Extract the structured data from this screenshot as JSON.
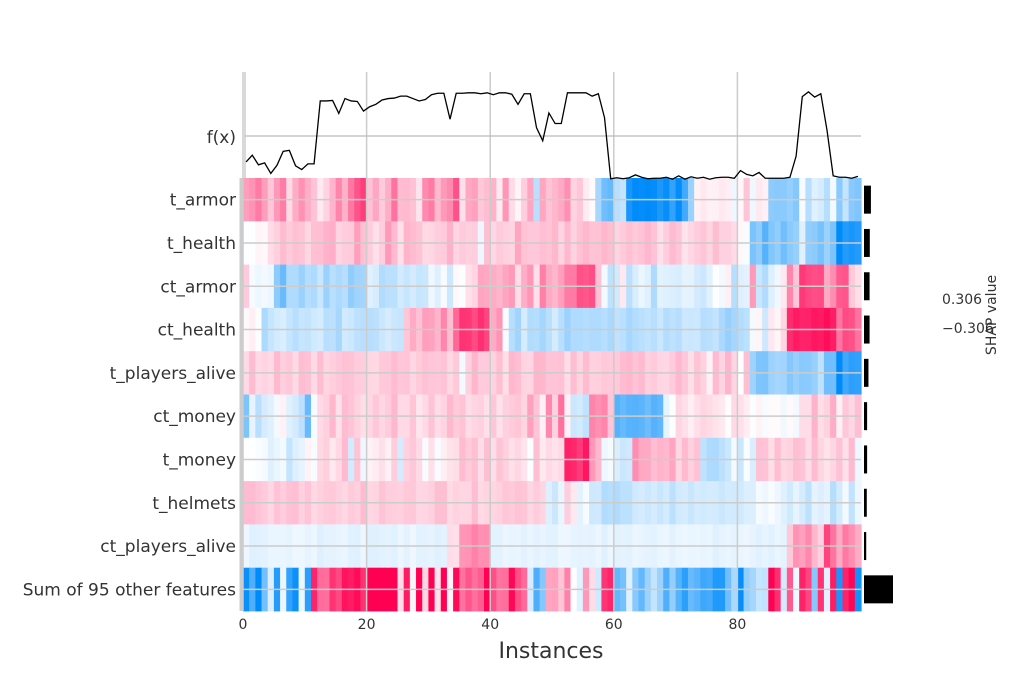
{
  "chart_data": {
    "type": "heatmap",
    "title": "",
    "xlabel": "Instances",
    "fx_label": "f(x)",
    "colorbar_label": "SHAP value",
    "colorbar_max_label": "0.306",
    "colorbar_min_label": "−0.306",
    "vmin": -0.306,
    "vmax": 0.306,
    "xlim": [
      0,
      100
    ],
    "x_ticks": [
      0,
      20,
      40,
      60,
      80
    ],
    "n_instances": 100,
    "colors": {
      "negative": "#008bfb",
      "positive": "#ff0052",
      "neutral": "#ffffff",
      "line": "#000000",
      "grid": "#cccccc"
    },
    "features": [
      "t_armor",
      "t_health",
      "ct_armor",
      "ct_health",
      "t_players_alive",
      "ct_money",
      "t_money",
      "t_helmets",
      "ct_players_alive",
      "Sum of 95 other features"
    ],
    "feature_importance": [
      0.62,
      0.52,
      0.5,
      0.5,
      0.4,
      0.28,
      0.28,
      0.25,
      0.2,
      2.6
    ],
    "fx_values": [
      -0.54,
      -0.4,
      -0.6,
      -0.56,
      -0.78,
      -0.61,
      -0.32,
      -0.3,
      -0.62,
      -0.7,
      -0.58,
      -0.58,
      0.73,
      0.73,
      0.74,
      0.47,
      0.78,
      0.73,
      0.72,
      0.52,
      0.61,
      0.66,
      0.75,
      0.78,
      0.79,
      0.83,
      0.83,
      0.78,
      0.73,
      0.76,
      0.86,
      0.89,
      0.89,
      0.35,
      0.89,
      0.89,
      0.9,
      0.9,
      0.88,
      0.9,
      0.86,
      0.9,
      0.9,
      0.87,
      0.66,
      0.88,
      0.88,
      0.17,
      -0.1,
      0.48,
      0.26,
      0.26,
      0.9,
      0.9,
      0.9,
      0.9,
      0.83,
      0.88,
      0.38,
      -0.89,
      -0.87,
      -0.89,
      -0.87,
      -0.81,
      -0.86,
      -0.89,
      -0.88,
      -0.88,
      -0.86,
      -0.9,
      -0.83,
      -0.9,
      -0.85,
      -0.88,
      -0.86,
      -0.9,
      -0.87,
      -0.86,
      -0.86,
      -0.88,
      -0.72,
      -0.8,
      -0.83,
      -0.76,
      -0.88,
      -0.88,
      -0.88,
      -0.88,
      -0.86,
      -0.42,
      0.82,
      0.92,
      0.81,
      0.88,
      0.12,
      -0.83,
      -0.86,
      -0.86,
      -0.88,
      -0.84
    ],
    "shap_values": [
      [
        0.118,
        0.13,
        0.159,
        0.118,
        0.068,
        0.123,
        0.157,
        0.043,
        0.1,
        0.132,
        0.097,
        0.073,
        0.025,
        0.053,
        0.091,
        0.147,
        0.094,
        0.162,
        0.205,
        0.233,
        0.075,
        0.107,
        0.062,
        0.097,
        0.171,
        0.082,
        0.083,
        0.075,
        0.032,
        0.141,
        0.16,
        0.083,
        0.123,
        0.14,
        0.209,
        0.039,
        0.104,
        0.114,
        0.066,
        0.079,
        0.093,
        0.025,
        0.126,
        0.043,
        0.013,
        0.06,
        0.108,
        -0.083,
        0.107,
        0.073,
        0.087,
        0.103,
        0.134,
        0.052,
        0.068,
        0.024,
        0.006,
        -0.105,
        -0.172,
        -0.185,
        -0.085,
        -0.072,
        -0.277,
        -0.306,
        -0.3,
        -0.319,
        -0.301,
        -0.273,
        -0.298,
        -0.245,
        -0.303,
        -0.227,
        -0.12,
        0.016,
        0.028,
        0.017,
        0.018,
        0.028,
        0.021,
        -0.021,
        0.009,
        0.07,
        -0.019,
        0.026,
        0.018,
        -0.136,
        -0.142,
        -0.139,
        -0.127,
        -0.145,
        -0.01,
        -0.086,
        -0.038,
        -0.05,
        -0.088,
        -0.014,
        -0.139,
        -0.072,
        -0.142,
        -0.152
      ],
      [
        -0.003,
        -0.002,
        0.012,
        0.009,
        0.042,
        0.056,
        0.081,
        0.062,
        0.076,
        0.071,
        0.048,
        0.076,
        0.078,
        0.092,
        0.098,
        0.05,
        0.061,
        0.064,
        0.117,
        0.076,
        0.06,
        0.037,
        0.059,
        0.122,
        0.084,
        0.037,
        0.09,
        0.082,
        0.072,
        0.046,
        0.048,
        0.06,
        0.064,
        0.094,
        0.05,
        0.064,
        0.056,
        0.059,
        -0.021,
        0.077,
        0.048,
        0.064,
        0.057,
        0.051,
        0.108,
        0.072,
        0.067,
        0.067,
        0.078,
        0.072,
        0.087,
        0.052,
        0.085,
        0.054,
        0.075,
        0.086,
        0.072,
        0.074,
        0.086,
        0.077,
        0.053,
        0.062,
        0.076,
        0.064,
        0.073,
        0.087,
        0.073,
        0.039,
        0.06,
        0.084,
        0.069,
        0.034,
        0.049,
        0.059,
        0.07,
        0.051,
        0.079,
        0.055,
        0.056,
        0.043,
        0.009,
        -0.008,
        -0.158,
        -0.134,
        -0.202,
        -0.151,
        -0.132,
        -0.171,
        -0.14,
        -0.124,
        -0.039,
        -0.131,
        -0.137,
        -0.163,
        -0.121,
        -0.157,
        -0.314,
        -0.264,
        -0.278,
        -0.263
      ],
      [
        0.064,
        -0.011,
        -0.022,
        -0.015,
        -0.021,
        -0.137,
        -0.179,
        -0.095,
        -0.096,
        -0.121,
        -0.09,
        -0.098,
        -0.066,
        -0.121,
        -0.085,
        -0.099,
        -0.087,
        -0.133,
        -0.114,
        -0.11,
        -0.038,
        -0.048,
        -0.092,
        -0.082,
        -0.082,
        -0.054,
        -0.068,
        -0.052,
        -0.069,
        -0.063,
        -0.018,
        -0.04,
        -0.01,
        -0.061,
        0.008,
        -0.004,
        0.038,
        0.05,
        0.109,
        0.105,
        0.099,
        0.089,
        0.108,
        0.122,
        0.04,
        0.098,
        0.126,
        0.038,
        0.154,
        0.102,
        0.089,
        0.117,
        0.158,
        0.16,
        0.21,
        0.203,
        0.213,
        0.075,
        -0.014,
        -0.078,
        -0.056,
        0.028,
        -0.082,
        -0.047,
        -0.024,
        -0.038,
        -0.097,
        -0.035,
        -0.039,
        -0.042,
        -0.047,
        -0.032,
        -0.031,
        -0.052,
        -0.06,
        -0.036,
        -0.003,
        -0.015,
        0.019,
        -0.088,
        -0.04,
        -0.033,
        0.123,
        -0.066,
        -0.092,
        -0.04,
        -0.019,
        0.028,
        0.146,
        0.071,
        0.239,
        0.22,
        0.212,
        0.216,
        0.103,
        0.137,
        0.198,
        0.204,
        0.065,
        0.04
      ],
      [
        0.009,
        0.021,
        -0.004,
        -0.1,
        -0.069,
        -0.053,
        -0.046,
        -0.068,
        -0.084,
        -0.069,
        -0.071,
        -0.058,
        -0.05,
        -0.084,
        -0.081,
        -0.105,
        -0.055,
        -0.061,
        -0.079,
        -0.085,
        -0.086,
        -0.082,
        -0.063,
        -0.049,
        -0.063,
        -0.069,
        0.069,
        0.101,
        0.075,
        0.117,
        0.112,
        0.089,
        0.147,
        0.077,
        0.182,
        0.245,
        0.24,
        0.216,
        0.25,
        0.225,
        0.101,
        0.128,
        -0.007,
        -0.088,
        -0.112,
        -0.05,
        -0.092,
        -0.09,
        -0.109,
        -0.082,
        -0.052,
        -0.085,
        -0.119,
        -0.094,
        -0.096,
        -0.09,
        -0.095,
        -0.096,
        -0.086,
        -0.101,
        -0.076,
        -0.082,
        -0.105,
        -0.091,
        -0.083,
        -0.073,
        -0.085,
        -0.064,
        -0.089,
        -0.078,
        -0.087,
        -0.06,
        -0.063,
        -0.061,
        -0.086,
        -0.083,
        -0.071,
        -0.101,
        -0.124,
        -0.107,
        -0.091,
        -0.08,
        -0.012,
        0.012,
        -0.059,
        0.029,
        0.013,
        0.048,
        0.255,
        0.274,
        0.264,
        0.266,
        0.28,
        0.274,
        0.29,
        0.271,
        0.167,
        0.216,
        0.209,
        0.17
      ],
      [
        0.044,
        0.081,
        0.045,
        0.053,
        0.045,
        0.083,
        0.059,
        0.067,
        0.044,
        0.079,
        0.074,
        0.046,
        0.079,
        0.05,
        0.058,
        0.066,
        0.074,
        0.072,
        0.061,
        0.059,
        0.048,
        0.047,
        0.065,
        0.067,
        0.082,
        0.068,
        0.071,
        0.048,
        0.063,
        0.075,
        0.068,
        0.066,
        0.073,
        0.047,
        0.065,
        -0.016,
        0.055,
        0.088,
        0.064,
        0.064,
        0.054,
        0.078,
        0.04,
        0.086,
        0.078,
        0.052,
        0.05,
        0.088,
        0.087,
        0.071,
        0.073,
        0.074,
        0.041,
        0.079,
        0.052,
        0.081,
        0.056,
        0.058,
        0.066,
        0.062,
        0.065,
        0.082,
        0.086,
        0.073,
        0.084,
        0.057,
        0.064,
        0.05,
        0.048,
        0.062,
        0.085,
        0.067,
        0.04,
        0.072,
        0.055,
        0.016,
        0.084,
        0.052,
        0.091,
        0.051,
        -0.002,
        0.077,
        -0.117,
        -0.154,
        -0.156,
        -0.118,
        -0.108,
        -0.113,
        -0.145,
        -0.124,
        -0.142,
        -0.139,
        -0.125,
        -0.078,
        -0.171,
        -0.172,
        -0.322,
        -0.229,
        -0.253,
        -0.249
      ],
      [
        -0.156,
        -0.029,
        -0.084,
        -0.049,
        -0.038,
        -0.015,
        0.017,
        -0.038,
        -0.054,
        -0.081,
        -0.182,
        -0.01,
        0.045,
        0.056,
        0.087,
        0.039,
        0.082,
        0.071,
        0.054,
        0.04,
        0.049,
        0.067,
        0.048,
        0.061,
        0.087,
        0.046,
        0.046,
        0.07,
        0.03,
        0.044,
        0.072,
        0.042,
        0.053,
        0.085,
        0.063,
        0.073,
        0.042,
        0.05,
        0.056,
        0.038,
        0.069,
        0.036,
        0.055,
        0.063,
        0.069,
        0.051,
        0.114,
        0.071,
        0.018,
        0.145,
        0.057,
        0.172,
        0.017,
        -0.062,
        -0.056,
        -0.077,
        0.148,
        0.135,
        0.146,
        0.068,
        -0.202,
        -0.185,
        -0.201,
        -0.203,
        -0.195,
        -0.175,
        -0.203,
        -0.191,
        -0.03,
        -0.005,
        0.05,
        0.039,
        0.019,
        0.038,
        0.051,
        0.043,
        0.034,
        0.028,
        0.004,
        0.045,
        0.039,
        0.022,
        -0.004,
        0.015,
        -0.009,
        0.006,
        0.005,
        -0.017,
        0.007,
        -0.016,
        0.041,
        0.041,
        0.092,
        0.04,
        0.054,
        0.099,
        0.018,
        0.067,
        0.048,
        0.077
      ],
      [
        0.001,
        -0.001,
        -0.006,
        -0.012,
        -0.038,
        -0.027,
        -0.016,
        -0.072,
        -0.04,
        -0.03,
        0.015,
        -0.008,
        0.047,
        0.058,
        0.028,
        0.047,
        0.084,
        -0.052,
        0.072,
        -0.021,
        0.016,
        0.024,
        0.037,
        0.018,
        0.059,
        -0.049,
        0.057,
        0.067,
        0.045,
        -0.007,
        0.039,
        -0.009,
        0.021,
        0.034,
        0.04,
        0.082,
        0.063,
        0.076,
        0.042,
        0.077,
        0.042,
        0.072,
        0.055,
        0.039,
        0.049,
        0.032,
        -0.005,
        0.077,
        0.026,
        0.044,
        0.035,
        0.045,
        0.268,
        0.258,
        0.236,
        0.281,
        0.125,
        0.086,
        -0.022,
        -0.011,
        -0.045,
        -0.064,
        -0.057,
        0.137,
        0.104,
        0.102,
        0.08,
        0.09,
        0.085,
        0.108,
        0.049,
        0.083,
        0.057,
        0.074,
        -0.077,
        -0.097,
        -0.1,
        -0.081,
        -0.064,
        -0.014,
        -0.064,
        -0.006,
        -0.045,
        0.074,
        0.073,
        0.04,
        0.078,
        0.049,
        0.054,
        0.077,
        0.071,
        0.041,
        0.081,
        0.051,
        0.035,
        0.049,
        0.075,
        0.037,
        0.084,
        -0.019
      ],
      [
        0.082,
        0.082,
        0.071,
        0.062,
        0.048,
        0.073,
        0.06,
        0.074,
        0.078,
        0.055,
        0.071,
        0.047,
        0.056,
        0.063,
        0.065,
        0.056,
        0.048,
        0.063,
        0.056,
        0.081,
        0.049,
        0.052,
        0.072,
        0.06,
        0.058,
        0.055,
        0.065,
        0.066,
        0.049,
        0.05,
        0.057,
        0.077,
        0.077,
        0.044,
        0.054,
        0.048,
        0.05,
        0.079,
        0.044,
        0.051,
        0.05,
        0.056,
        0.069,
        0.064,
        0.072,
        0.069,
        0.049,
        0.061,
        0.051,
        -0.04,
        -0.064,
        -0.025,
        0.059,
        0.027,
        -0.035,
        -0.011,
        -0.059,
        -0.057,
        -0.092,
        -0.088,
        -0.094,
        -0.08,
        -0.08,
        -0.057,
        -0.05,
        -0.061,
        -0.051,
        -0.066,
        -0.053,
        -0.08,
        -0.055,
        -0.051,
        -0.065,
        -0.05,
        -0.056,
        -0.05,
        -0.054,
        -0.064,
        -0.054,
        -0.055,
        -0.055,
        -0.043,
        -0.041,
        -0.012,
        -0.02,
        -0.008,
        -0.02,
        -0.038,
        -0.056,
        -0.03,
        -0.051,
        -0.078,
        -0.031,
        -0.041,
        -0.031,
        -0.09,
        -0.054,
        -0.015,
        -0.075,
        -0.022
      ],
      [
        -0.02,
        -0.039,
        -0.036,
        -0.035,
        -0.026,
        -0.026,
        -0.027,
        -0.03,
        -0.02,
        -0.022,
        -0.029,
        -0.023,
        -0.04,
        -0.031,
        -0.031,
        -0.028,
        -0.026,
        -0.037,
        -0.039,
        -0.024,
        -0.038,
        -0.038,
        -0.035,
        -0.031,
        -0.037,
        -0.024,
        -0.033,
        -0.021,
        -0.035,
        -0.033,
        -0.03,
        -0.039,
        -0.035,
        0.041,
        0.039,
        0.127,
        0.131,
        0.153,
        0.133,
        0.136,
        -0.035,
        -0.035,
        -0.024,
        -0.028,
        -0.026,
        -0.033,
        -0.026,
        -0.033,
        -0.028,
        -0.033,
        -0.034,
        -0.022,
        -0.021,
        -0.03,
        -0.031,
        -0.029,
        -0.032,
        -0.024,
        -0.038,
        -0.023,
        -0.035,
        -0.031,
        -0.035,
        -0.023,
        -0.028,
        -0.031,
        -0.034,
        -0.025,
        -0.024,
        -0.033,
        -0.025,
        -0.022,
        -0.027,
        -0.024,
        -0.028,
        -0.025,
        -0.039,
        -0.03,
        -0.026,
        -0.031,
        -0.026,
        -0.021,
        -0.029,
        -0.036,
        -0.03,
        -0.037,
        -0.027,
        -0.032,
        0.065,
        0.13,
        0.114,
        0.143,
        0.087,
        0.055,
        0.226,
        0.167,
        0.103,
        0.161,
        0.136,
        0.101
      ],
      [
        -0.293,
        -0.21,
        -0.307,
        -0.167,
        -0.041,
        -0.262,
        -0.023,
        -0.245,
        -0.292,
        -0.022,
        -0.253,
        0.264,
        0.178,
        0.173,
        0.245,
        0.219,
        0.283,
        0.272,
        0.293,
        0.246,
        0.342,
        0.315,
        0.323,
        0.339,
        0.32,
        0.042,
        0.274,
        0.016,
        0.313,
        0.048,
        0.335,
        0.032,
        0.306,
        0.015,
        0.297,
        0.171,
        0.204,
        0.174,
        0.194,
        0.315,
        0.211,
        0.168,
        0.173,
        0.299,
        0.214,
        0.179,
        -0.049,
        -0.213,
        -0.146,
        0.109,
        0.113,
        0.07,
        0.15,
        0.003,
        -0.037,
        0.125,
        0.041,
        -0.058,
        0.244,
        0.262,
        -0.189,
        -0.164,
        -0.039,
        -0.143,
        -0.189,
        -0.118,
        -0.071,
        -0.119,
        -0.211,
        -0.128,
        -0.204,
        -0.254,
        -0.182,
        -0.198,
        -0.233,
        -0.223,
        -0.269,
        -0.266,
        -0.172,
        -0.101,
        -0.297,
        -0.128,
        -0.108,
        -0.069,
        -0.073,
        0.348,
        0.253,
        -0.052,
        0.198,
        -0.018,
        0.265,
        0.224,
        -0.143,
        0.246,
        -0.033,
        0.272,
        -0.276,
        0.266,
        0.299,
        -0.284
      ]
    ]
  }
}
